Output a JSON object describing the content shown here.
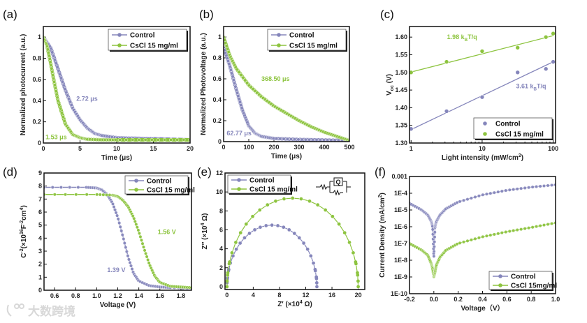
{
  "colors": {
    "control": "#8586bb",
    "cscl": "#8dc43f"
  },
  "watermark": "大数跨境",
  "chart_data": [
    {
      "id": "a",
      "panel_label": "(a)",
      "type": "line",
      "xlabel": "Time (μs)",
      "ylabel": "Normalized photocurrent (a.u.)",
      "xlim": [
        0,
        20
      ],
      "ylim": [
        0,
        1.1
      ],
      "xticks": [
        0,
        5,
        10,
        15,
        20
      ],
      "yticks": [
        0.0,
        0.2,
        0.4,
        0.6,
        0.8,
        1.0
      ],
      "legend": "top-right",
      "series": [
        {
          "name": "Control",
          "x": [
            0,
            1,
            2,
            3,
            4,
            5,
            6,
            7,
            8,
            10,
            12,
            15,
            20
          ],
          "y": [
            1.0,
            0.9,
            0.7,
            0.5,
            0.33,
            0.22,
            0.14,
            0.09,
            0.07,
            0.05,
            0.045,
            0.04,
            0.03
          ]
        },
        {
          "name": "CsCl 15 mg/ml",
          "x": [
            0,
            0.5,
            1,
            1.5,
            2,
            3,
            4,
            5,
            6,
            8,
            10,
            15,
            20
          ],
          "y": [
            1.0,
            0.92,
            0.75,
            0.57,
            0.4,
            0.18,
            0.08,
            0.05,
            0.035,
            0.03,
            0.03,
            0.03,
            0.03
          ]
        }
      ],
      "annotations": [
        {
          "text": "2.72 μs",
          "series": 0,
          "x": 4.5,
          "y": 0.4
        },
        {
          "text": "1.53 μs",
          "series": 1,
          "x": 0.3,
          "y": 0.035
        }
      ]
    },
    {
      "id": "b",
      "panel_label": "(b)",
      "type": "line",
      "xlabel": "Time (μs)",
      "ylabel": "Normalized Photovoltage (a.u.)",
      "xlim": [
        0,
        500
      ],
      "ylim": [
        0,
        1.1
      ],
      "xticks": [
        0,
        100,
        200,
        300,
        400,
        500
      ],
      "yticks": [
        0.0,
        0.2,
        0.4,
        0.6,
        0.8,
        1.0
      ],
      "legend": "top-right",
      "series": [
        {
          "name": "Control",
          "x": [
            0,
            25,
            50,
            75,
            100,
            125,
            150,
            200,
            300,
            400,
            500
          ],
          "y": [
            0.9,
            0.72,
            0.5,
            0.3,
            0.15,
            0.08,
            0.05,
            0.03,
            0.02,
            0.015,
            0.01
          ]
        },
        {
          "name": "CsCl 15 mg/ml",
          "x": [
            0,
            25,
            50,
            100,
            150,
            200,
            250,
            300,
            350,
            400,
            450,
            500
          ],
          "y": [
            1.0,
            0.82,
            0.7,
            0.54,
            0.43,
            0.34,
            0.27,
            0.2,
            0.14,
            0.09,
            0.05,
            0.01
          ]
        }
      ],
      "annotations": [
        {
          "text": "368.50 μs",
          "series": 1,
          "x": 150,
          "y": 0.58
        },
        {
          "text": "62.77 μs",
          "series": 0,
          "x": 12,
          "y": 0.06
        }
      ]
    },
    {
      "id": "c",
      "panel_label": "(c)",
      "type": "scatter",
      "xlabel": "Light intensity (mW/cm^{2})",
      "ylabel": "V_{oc} (V)",
      "xscale": "log",
      "xlim": [
        0.95,
        108
      ],
      "ylim": [
        1.3,
        1.63
      ],
      "xticks": [
        1,
        10,
        100
      ],
      "xticklabels": [
        "1",
        "10",
        "100"
      ],
      "yticks": [
        1.3,
        1.35,
        1.4,
        1.45,
        1.5,
        1.55,
        1.6
      ],
      "yticklabels": [
        "1.30",
        "1.35",
        "1.40",
        "1.45",
        "1.50",
        "1.55",
        "1.60"
      ],
      "legend": "bottom-right",
      "series": [
        {
          "name": "Control",
          "x": [
            1,
            3.16,
            10,
            31.6,
            79,
            100
          ],
          "y": [
            1.34,
            1.39,
            1.43,
            1.5,
            1.51,
            1.53
          ],
          "fit": [
            1.338,
            1.53
          ]
        },
        {
          "name": "CsCl 15 mg/ml",
          "x": [
            1,
            3.16,
            10,
            31.6,
            79,
            100
          ],
          "y": [
            1.5,
            1.53,
            1.56,
            1.57,
            1.6,
            1.61
          ],
          "fit": [
            1.501,
            1.604
          ]
        }
      ],
      "annotations": [
        {
          "text": "1.98 k_{B}T/q",
          "series": 1,
          "x": 3.2,
          "y": 1.594
        },
        {
          "text": "3.61 k_{B}T/q",
          "series": 0,
          "x": 30,
          "y": 1.455
        }
      ]
    },
    {
      "id": "d",
      "panel_label": "(d)",
      "type": "line",
      "xlabel": "Voltage (V)",
      "ylabel": "C^{-2}(×10^{16}F^{-2}cm^{4})",
      "xlim": [
        0.5,
        1.9
      ],
      "ylim": [
        0,
        9
      ],
      "xticks": [
        0.6,
        0.8,
        1.0,
        1.2,
        1.4,
        1.6,
        1.8
      ],
      "yticks": [
        0,
        1,
        2,
        3,
        4,
        5,
        6,
        7,
        8,
        9
      ],
      "xticklabels": [
        "0.6",
        "0.8",
        "1.0",
        "1.2",
        "1.4",
        "1.6",
        "1.8"
      ],
      "legend": "top-right",
      "series": [
        {
          "name": "Control",
          "x": [
            0.5,
            0.9,
            1.0,
            1.05,
            1.1,
            1.15,
            1.2,
            1.25,
            1.3,
            1.35,
            1.4,
            1.5,
            1.6,
            1.7,
            1.9
          ],
          "y": [
            7.9,
            7.9,
            7.85,
            7.7,
            7.35,
            6.7,
            5.6,
            4.1,
            2.5,
            1.3,
            0.7,
            0.35,
            0.25,
            0.2,
            0.15
          ]
        },
        {
          "name": "CsCl 15 mg/ml",
          "x": [
            0.5,
            1.0,
            1.15,
            1.2,
            1.25,
            1.3,
            1.35,
            1.4,
            1.45,
            1.5,
            1.55,
            1.6,
            1.7,
            1.8,
            1.9
          ],
          "y": [
            7.35,
            7.35,
            7.3,
            7.2,
            6.9,
            6.4,
            5.6,
            4.5,
            3.2,
            2.0,
            1.1,
            0.6,
            0.3,
            0.25,
            0.2
          ]
        }
      ],
      "annotations": [
        {
          "text": "1.56 V",
          "series": 1,
          "x": 1.58,
          "y": 4.3
        },
        {
          "text": "1.39 V",
          "series": 0,
          "x": 1.1,
          "y": 1.4
        }
      ]
    },
    {
      "id": "e",
      "panel_label": "(e)",
      "type": "scatter-line",
      "xlabel": "Z′ (×10^{4} Ω)",
      "ylabel": "Z″ (×10^{4} Ω)",
      "xlim": [
        -0.3,
        21
      ],
      "ylim": [
        -0.3,
        12
      ],
      "xticks": [
        0,
        4,
        8,
        12,
        16,
        20
      ],
      "yticks": [
        0,
        2,
        4,
        6,
        8,
        10,
        12
      ],
      "legend": "top-left",
      "inset": {
        "type": "equivalent-circuit",
        "element": "Q"
      },
      "series": [
        {
          "name": "Control",
          "center": 6.85,
          "radius_x": 6.85,
          "peak": 6.5
        },
        {
          "name": "CsCl 15 mg/ml",
          "center": 10.0,
          "radius_x": 10.0,
          "peak": 9.35
        }
      ]
    },
    {
      "id": "f",
      "panel_label": "(f)",
      "type": "line",
      "xlabel": "Voltage（V）",
      "ylabel": "Current Density (mA/cm^{2})",
      "yscale": "log",
      "xlim": [
        -0.2,
        1.0
      ],
      "ylim": [
        1e-10,
        0.001
      ],
      "xticks": [
        -0.2,
        0.0,
        0.2,
        0.4,
        0.6,
        0.8,
        1.0
      ],
      "xticklabels": [
        "-0.2",
        "0.0",
        "0.2",
        "0.4",
        "0.6",
        "0.8",
        "1.0"
      ],
      "yticks": [
        1e-10,
        1e-09,
        1e-08,
        1e-07,
        1e-06,
        1e-05,
        0.0001,
        0.001
      ],
      "yticklabels": [
        "1E-10",
        "1E-9",
        "1E-8",
        "1E-7",
        "1E-6",
        "1E-5",
        "1E-4",
        "0.001"
      ],
      "legend": "bottom-right",
      "series": [
        {
          "name": "Control",
          "x": [
            -0.2,
            -0.1,
            -0.05,
            -0.02,
            -0.01,
            0,
            0.01,
            0.02,
            0.05,
            0.1,
            0.2,
            0.4,
            0.6,
            0.8,
            1.0
          ],
          "y": [
            2.5e-05,
            1e-05,
            5e-06,
            2e-06,
            1e-06,
            1.5e-08,
            1e-06,
            2e-06,
            5e-06,
            1.2e-05,
            3e-05,
            8e-05,
            0.00015,
            0.00023,
            0.00032
          ]
        },
        {
          "name": "CsCl 15mg/ml",
          "x": [
            -0.2,
            -0.1,
            -0.05,
            -0.02,
            -0.01,
            0,
            0.01,
            0.02,
            0.05,
            0.1,
            0.2,
            0.4,
            0.6,
            0.8,
            1.0
          ],
          "y": [
            1e-07,
            4e-08,
            2e-08,
            6e-09,
            3e-09,
            1e-09,
            2e-09,
            5e-09,
            1.5e-08,
            4e-08,
            1e-07,
            2.5e-07,
            5e-07,
            9e-07,
            1.7e-06
          ]
        }
      ]
    }
  ]
}
